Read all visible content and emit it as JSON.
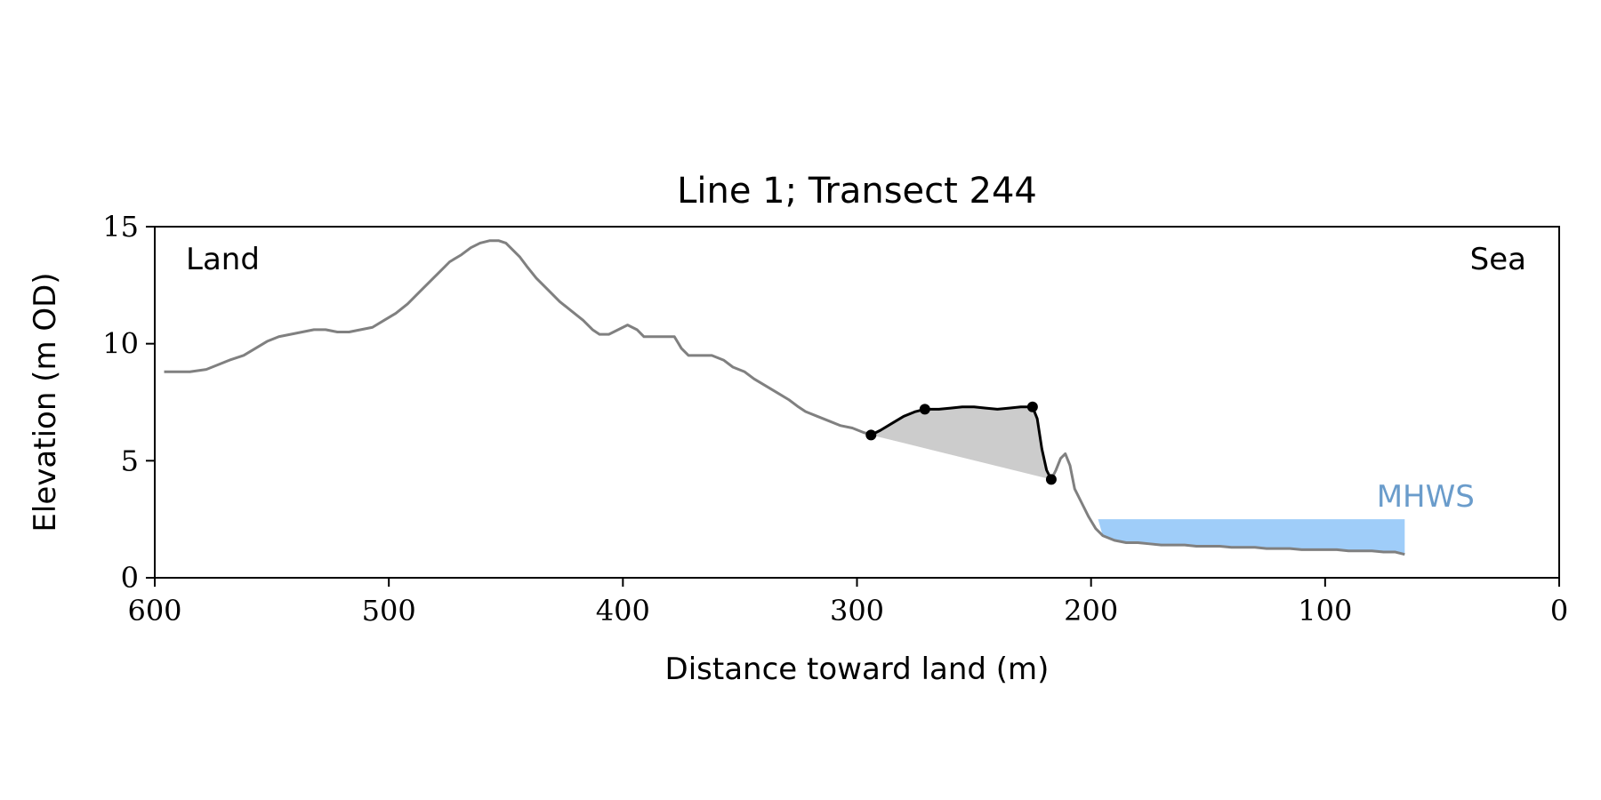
{
  "chart_data": {
    "type": "line",
    "title": "Line 1; Transect 244",
    "xlabel": "Distance toward land (m)",
    "ylabel": "Elevation (m OD)",
    "xlim": [
      600,
      0
    ],
    "ylim": [
      0,
      15
    ],
    "x_ticks": [
      600,
      500,
      400,
      300,
      200,
      100,
      0
    ],
    "y_ticks": [
      0,
      5,
      10,
      15
    ],
    "grid": false,
    "annotations": {
      "land": "Land",
      "sea": "Sea",
      "mhws": "MHWS"
    },
    "colors": {
      "profile": "#808080",
      "feature": "#000000",
      "fill": "#cccccc",
      "mhws": "#9fcdf9",
      "mhws_text": "#6a9ccb"
    },
    "series": [
      {
        "role": "profile",
        "x": [
          596,
          590,
          585,
          578,
          573,
          568,
          562,
          557,
          552,
          547,
          542,
          537,
          532,
          527,
          522,
          517,
          512,
          507,
          502,
          497,
          492,
          487,
          482,
          478,
          474,
          469,
          465,
          461,
          457,
          453,
          450,
          447,
          444,
          441,
          437,
          432,
          427,
          422,
          417,
          413,
          410,
          406,
          402,
          398,
          394,
          391,
          386,
          381,
          378,
          375,
          372,
          368,
          362,
          357,
          353,
          348,
          344,
          339,
          334,
          329,
          325,
          322,
          317,
          312,
          307,
          302,
          297,
          293
        ],
        "y": [
          8.8,
          8.8,
          8.8,
          8.9,
          9.1,
          9.3,
          9.5,
          9.8,
          10.1,
          10.3,
          10.4,
          10.5,
          10.6,
          10.6,
          10.5,
          10.5,
          10.6,
          10.7,
          11.0,
          11.3,
          11.7,
          12.2,
          12.7,
          13.1,
          13.5,
          13.8,
          14.1,
          14.3,
          14.4,
          14.4,
          14.3,
          14.0,
          13.7,
          13.3,
          12.8,
          12.3,
          11.8,
          11.4,
          11.0,
          10.6,
          10.4,
          10.4,
          10.6,
          10.8,
          10.6,
          10.3,
          10.3,
          10.3,
          10.3,
          9.8,
          9.5,
          9.5,
          9.5,
          9.3,
          9.0,
          8.8,
          8.5,
          8.2,
          7.9,
          7.6,
          7.3,
          7.1,
          6.9,
          6.7,
          6.5,
          6.4,
          6.2,
          6.1
        ]
      },
      {
        "role": "profile",
        "x": [
          217,
          215,
          213,
          211,
          209,
          207,
          204,
          201,
          198,
          195,
          190,
          185,
          180,
          175,
          170,
          165,
          160,
          155,
          150,
          145,
          140,
          135,
          130,
          125,
          120,
          115,
          110,
          105,
          100,
          95,
          90,
          85,
          80,
          75,
          70,
          66
        ],
        "y": [
          4.2,
          4.6,
          5.1,
          5.3,
          4.8,
          3.8,
          3.2,
          2.6,
          2.1,
          1.8,
          1.6,
          1.5,
          1.5,
          1.45,
          1.4,
          1.4,
          1.4,
          1.35,
          1.35,
          1.35,
          1.3,
          1.3,
          1.3,
          1.25,
          1.25,
          1.25,
          1.2,
          1.2,
          1.2,
          1.2,
          1.15,
          1.15,
          1.15,
          1.1,
          1.1,
          1.0
        ]
      },
      {
        "role": "feature",
        "x": [
          294,
          290,
          285,
          280,
          275,
          271,
          265,
          260,
          255,
          250,
          245,
          240,
          235,
          230,
          225,
          223,
          221,
          219,
          217
        ],
        "y": [
          6.1,
          6.3,
          6.6,
          6.9,
          7.1,
          7.2,
          7.2,
          7.25,
          7.3,
          7.3,
          7.25,
          7.2,
          7.25,
          7.3,
          7.3,
          6.8,
          5.5,
          4.6,
          4.2
        ]
      }
    ],
    "markers": {
      "x": [
        294,
        271,
        225,
        217
      ],
      "y": [
        6.1,
        7.2,
        7.3,
        4.2
      ]
    },
    "mhws_band": {
      "x": [
        197,
        66
      ],
      "y_top": 2.5
    }
  }
}
